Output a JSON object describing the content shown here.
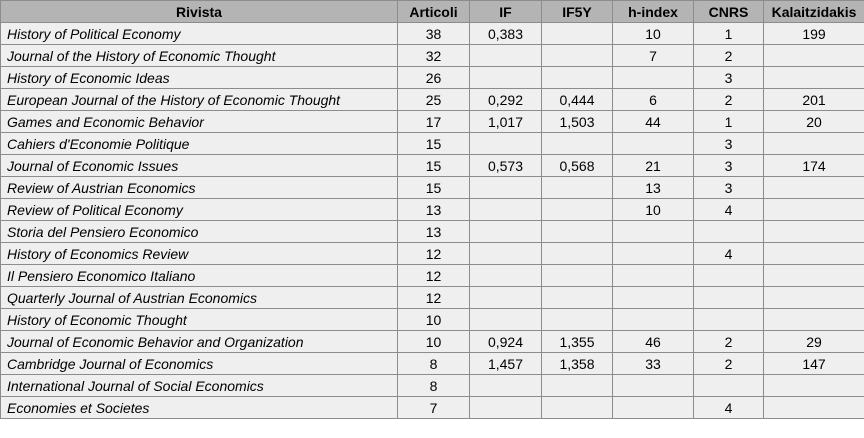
{
  "table": {
    "columns": [
      "Rivista",
      "Articoli",
      "IF",
      "IF5Y",
      "h-index",
      "CNRS",
      "Kalaitzidakis"
    ],
    "rows": [
      [
        "History of Political Economy",
        38,
        "0,383",
        null,
        10,
        1,
        199
      ],
      [
        "Journal of the History of Economic Thought",
        32,
        null,
        null,
        7,
        2,
        null
      ],
      [
        "History of Economic Ideas",
        26,
        null,
        null,
        null,
        3,
        null
      ],
      [
        "European Journal of the History of Economic Thought",
        25,
        "0,292",
        "0,444",
        6,
        2,
        201
      ],
      [
        "Games and Economic Behavior",
        17,
        "1,017",
        "1,503",
        44,
        1,
        20
      ],
      [
        "Cahiers d'Economie Politique",
        15,
        null,
        null,
        null,
        3,
        null
      ],
      [
        "Journal of Economic Issues",
        15,
        "0,573",
        "0,568",
        21,
        3,
        174
      ],
      [
        "Review of Austrian Economics",
        15,
        null,
        null,
        13,
        3,
        null
      ],
      [
        "Review of Political Economy",
        13,
        null,
        null,
        10,
        4,
        null
      ],
      [
        "Storia del Pensiero Economico",
        13,
        null,
        null,
        null,
        null,
        null
      ],
      [
        "History of Economics Review",
        12,
        null,
        null,
        null,
        4,
        null
      ],
      [
        "Il Pensiero Economico Italiano",
        12,
        null,
        null,
        null,
        null,
        null
      ],
      [
        "Quarterly Journal of Austrian Economics",
        12,
        null,
        null,
        null,
        null,
        null
      ],
      [
        "History of Economic Thought",
        10,
        null,
        null,
        null,
        null,
        null
      ],
      [
        "Journal of Economic Behavior and Organization",
        10,
        "0,924",
        "1,355",
        46,
        2,
        29
      ],
      [
        "Cambridge Journal of Economics",
        8,
        "1,457",
        "1,358",
        33,
        2,
        147
      ],
      [
        "International Journal of Social Economics",
        8,
        null,
        null,
        null,
        null,
        null
      ],
      [
        "Economies et Societes",
        7,
        null,
        null,
        null,
        4,
        null
      ]
    ]
  }
}
